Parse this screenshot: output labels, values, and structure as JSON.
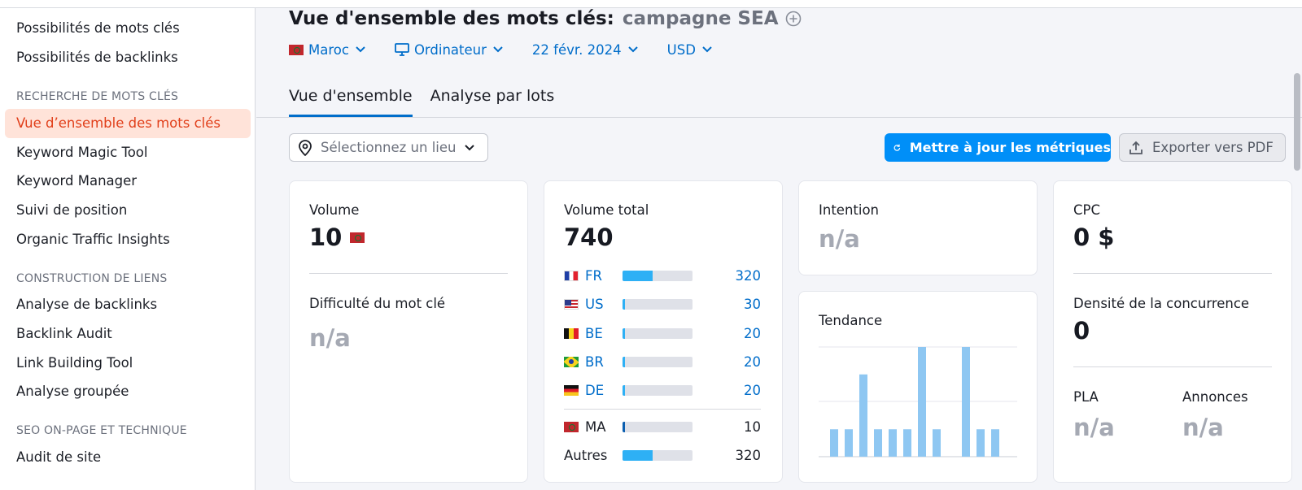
{
  "sidebar": {
    "items_top": [
      {
        "label": "Possibilités de mots clés"
      },
      {
        "label": "Possibilités de backlinks"
      }
    ],
    "section_keyword": "RECHERCHE DE MOTS CLÉS",
    "keyword_items": [
      {
        "label": "Vue d’ensemble des mots clés",
        "active": true
      },
      {
        "label": "Keyword Magic Tool"
      },
      {
        "label": "Keyword Manager"
      },
      {
        "label": "Suivi de position"
      },
      {
        "label": "Organic Traffic Insights"
      }
    ],
    "section_links": "CONSTRUCTION DE LIENS",
    "link_items": [
      {
        "label": "Analyse de backlinks"
      },
      {
        "label": "Backlink Audit"
      },
      {
        "label": "Link Building Tool"
      },
      {
        "label": "Analyse groupée"
      }
    ],
    "section_seo": "SEO ON-PAGE ET TECHNIQUE",
    "seo_items": [
      {
        "label": "Audit de site"
      }
    ]
  },
  "header": {
    "title": "Vue d'ensemble des mots clés:",
    "campaign": "campagne SEA",
    "add_icon": "plus-circle-icon"
  },
  "filters": {
    "country": "Maroc",
    "device": "Ordinateur",
    "date": "22 févr. 2024",
    "currency": "USD"
  },
  "tabs": [
    {
      "label": "Vue d'ensemble",
      "active": true
    },
    {
      "label": "Analyse par lots",
      "active": false
    }
  ],
  "location_select": {
    "placeholder": "Sélectionnez un lieu"
  },
  "buttons": {
    "update": "Mettre à jour les métriques",
    "export": "Exporter vers PDF"
  },
  "card_volume": {
    "label": "Volume",
    "value": "10",
    "difficulty_label": "Difficulté du mot clé",
    "difficulty_value": "n/a"
  },
  "card_total": {
    "label": "Volume total",
    "value": "740",
    "countries": [
      {
        "code": "FR",
        "value": "320",
        "share": 0.43,
        "flag": "fr"
      },
      {
        "code": "US",
        "value": "30",
        "share": 0.04,
        "flag": "us"
      },
      {
        "code": "BE",
        "value": "20",
        "share": 0.03,
        "flag": "be"
      },
      {
        "code": "BR",
        "value": "20",
        "share": 0.03,
        "flag": "br"
      },
      {
        "code": "DE",
        "value": "20",
        "share": 0.03,
        "flag": "de"
      }
    ],
    "local": {
      "code": "MA",
      "value": "10",
      "share": 0.02,
      "flag": "ma"
    },
    "others": {
      "label": "Autres",
      "value": "320",
      "share": 0.43
    }
  },
  "card_intent": {
    "label": "Intention",
    "value": "n/a"
  },
  "card_trend": {
    "label": "Tendance",
    "bars": [
      0.25,
      0.25,
      0.75,
      0.25,
      0.25,
      0.25,
      1.0,
      0.25,
      0.0,
      1.0,
      0.25,
      0.25
    ],
    "bar_color": "#8ec7f2"
  },
  "card_cpc": {
    "label": "CPC",
    "value": "0 $",
    "density_label": "Densité de la concurrence",
    "density_value": "0",
    "pla_label": "PLA",
    "pla_value": "n/a",
    "ads_label": "Annonces",
    "ads_value": "n/a"
  },
  "colors": {
    "accent": "#006dca",
    "button": "#008ff8",
    "active_nav": "#e13f1a"
  }
}
